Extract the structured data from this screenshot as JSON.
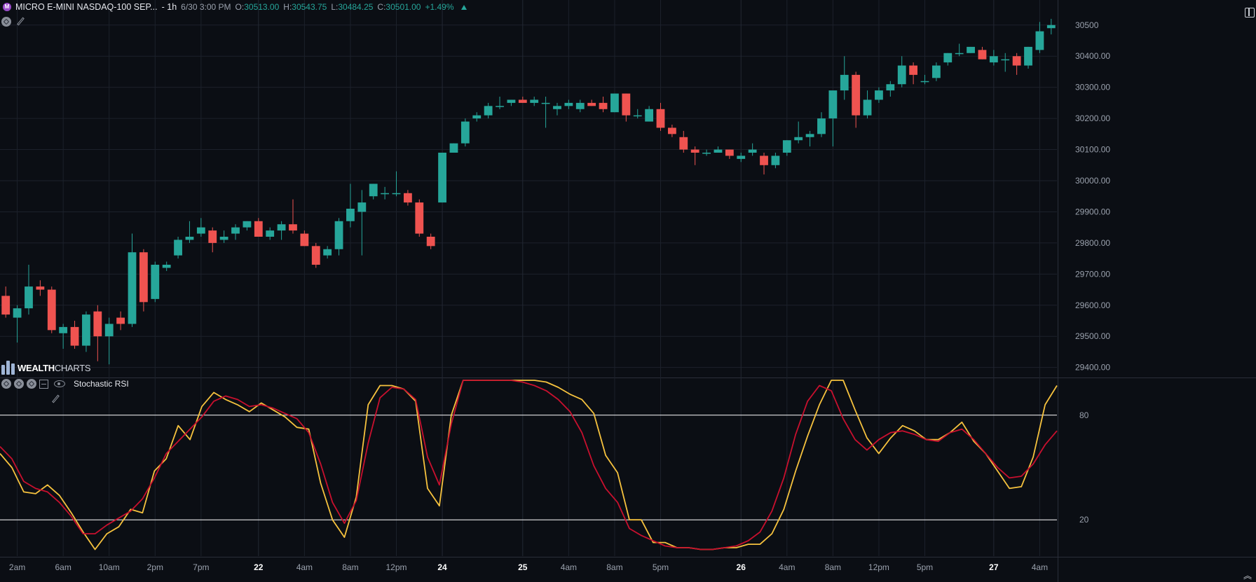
{
  "header": {
    "symbol": "MICRO E-MINI NASDAQ-100 SEP...",
    "interval": "- 1h",
    "datetime": "6/30 3:00 PM",
    "o_label": "O:",
    "o_value": "30513.00",
    "h_label": "H:",
    "h_value": "30543.75",
    "l_label": "L:",
    "l_value": "30484.25",
    "c_label": "C:",
    "c_value": "30501.00",
    "change": "+1.49%"
  },
  "brand": {
    "part1": "WEALTH",
    "part2": "CHARTS"
  },
  "indicator": {
    "name": "Stochastic RSI"
  },
  "colors": {
    "background": "#0b0e14",
    "up": "#26a69a",
    "down": "#ef5350",
    "k_line": "#f6c23e",
    "d_line": "#c8102e",
    "grid": "#1c212b",
    "level_line": "#ffffff"
  },
  "icons": [
    "symbol-icon",
    "settings-icon",
    "pencil-icon",
    "chevron-down-icon",
    "chevron-up-icon",
    "minimize-icon",
    "eye-icon",
    "layout-icon",
    "double-chevron-up-icon"
  ],
  "chart_data": [
    {
      "type": "candlestick",
      "title": "",
      "ylim": [
        29370,
        30540
      ],
      "y_ticks": [
        29400,
        29500,
        29600,
        29700,
        29800,
        29900,
        30000,
        30100,
        30200,
        30300,
        30400,
        30500
      ],
      "y_tick_labels": [
        "29400.00",
        "29500.00",
        "29600.00",
        "29700.00",
        "29800.00",
        "29900.00",
        "30000.00",
        "30100.00",
        "30200.00",
        "30300.00",
        "30400.00",
        "30500"
      ],
      "candles": [
        [
          29630,
          29660,
          29560,
          29570
        ],
        [
          29560,
          29600,
          29480,
          29590
        ],
        [
          29590,
          29730,
          29570,
          29660
        ],
        [
          29660,
          29680,
          29630,
          29650
        ],
        [
          29650,
          29660,
          29510,
          29520
        ],
        [
          29510,
          29540,
          29460,
          29530
        ],
        [
          29530,
          29550,
          29460,
          29470
        ],
        [
          29470,
          29580,
          29450,
          29570
        ],
        [
          29580,
          29600,
          29420,
          29500
        ],
        [
          29500,
          29560,
          29410,
          29540
        ],
        [
          29560,
          29580,
          29520,
          29540
        ],
        [
          29540,
          29830,
          29530,
          29770
        ],
        [
          29770,
          29780,
          29580,
          29610
        ],
        [
          29620,
          29740,
          29610,
          29730
        ],
        [
          29720,
          29740,
          29710,
          29730
        ],
        [
          29760,
          29820,
          29750,
          29810
        ],
        [
          29810,
          29870,
          29800,
          29820
        ],
        [
          29830,
          29880,
          29820,
          29850
        ],
        [
          29840,
          29850,
          29770,
          29800
        ],
        [
          29810,
          29840,
          29800,
          29820
        ],
        [
          29830,
          29860,
          29810,
          29850
        ],
        [
          29850,
          29870,
          29840,
          29870
        ],
        [
          29870,
          29880,
          29820,
          29820
        ],
        [
          29820,
          29850,
          29810,
          29840
        ],
        [
          29840,
          29870,
          29810,
          29860
        ],
        [
          29860,
          29940,
          29830,
          29840
        ],
        [
          29830,
          29840,
          29790,
          29790
        ],
        [
          29790,
          29800,
          29720,
          29730
        ],
        [
          29760,
          29790,
          29750,
          29780
        ],
        [
          29780,
          29880,
          29760,
          29870
        ],
        [
          29870,
          29990,
          29850,
          29910
        ],
        [
          29900,
          29970,
          29760,
          29930
        ],
        [
          29950,
          29990,
          29940,
          29990
        ],
        [
          29960,
          29980,
          29940,
          29960
        ],
        [
          29960,
          30030,
          29950,
          29960
        ],
        [
          29960,
          29970,
          29920,
          29930
        ],
        [
          29930,
          29940,
          29820,
          29830
        ],
        [
          29820,
          29830,
          29780,
          29790
        ],
        [
          29930,
          30090,
          29930,
          30090
        ],
        [
          30090,
          30120,
          30090,
          30120
        ],
        [
          30120,
          30200,
          30110,
          30190
        ],
        [
          30200,
          30220,
          30190,
          30210
        ],
        [
          30210,
          30250,
          30200,
          30240
        ],
        [
          30240,
          30270,
          30230,
          30240
        ],
        [
          30250,
          30260,
          30240,
          30260
        ],
        [
          30260,
          30270,
          30250,
          30250
        ],
        [
          30250,
          30270,
          30240,
          30260
        ],
        [
          30250,
          30270,
          30170,
          30250
        ],
        [
          30230,
          30250,
          30210,
          30240
        ],
        [
          30240,
          30260,
          30230,
          30250
        ],
        [
          30230,
          30260,
          30220,
          30250
        ],
        [
          30250,
          30260,
          30240,
          30240
        ],
        [
          30250,
          30270,
          30220,
          30230
        ],
        [
          30220,
          30280,
          30220,
          30280
        ],
        [
          30280,
          30280,
          30190,
          30210
        ],
        [
          30210,
          30230,
          30200,
          30210
        ],
        [
          30190,
          30240,
          30190,
          30230
        ],
        [
          30230,
          30250,
          30160,
          30170
        ],
        [
          30170,
          30180,
          30140,
          30150
        ],
        [
          30140,
          30160,
          30090,
          30100
        ],
        [
          30100,
          30110,
          30050,
          30090
        ],
        [
          30090,
          30100,
          30080,
          30090
        ],
        [
          30090,
          30110,
          30090,
          30100
        ],
        [
          30100,
          30100,
          30070,
          30080
        ],
        [
          30070,
          30090,
          30060,
          30080
        ],
        [
          30090,
          30120,
          30080,
          30100
        ],
        [
          30080,
          30090,
          30020,
          30050
        ],
        [
          30050,
          30090,
          30040,
          30080
        ],
        [
          30090,
          30130,
          30080,
          30130
        ],
        [
          30130,
          30190,
          30120,
          30140
        ],
        [
          30140,
          30160,
          30110,
          30150
        ],
        [
          30150,
          30220,
          30140,
          30200
        ],
        [
          30200,
          30280,
          30110,
          30290
        ],
        [
          30290,
          30400,
          30260,
          30340
        ],
        [
          30340,
          30350,
          30170,
          30210
        ],
        [
          30210,
          30290,
          30200,
          30260
        ],
        [
          30260,
          30300,
          30250,
          30290
        ],
        [
          30290,
          30320,
          30270,
          30310
        ],
        [
          30310,
          30400,
          30300,
          30370
        ],
        [
          30370,
          30380,
          30310,
          30340
        ],
        [
          30320,
          30340,
          30310,
          30320
        ],
        [
          30330,
          30380,
          30320,
          30370
        ],
        [
          30380,
          30410,
          30370,
          30410
        ],
        [
          30410,
          30440,
          30400,
          30410
        ],
        [
          30410,
          30430,
          30410,
          30430
        ],
        [
          30420,
          30430,
          30390,
          30390
        ],
        [
          30380,
          30420,
          30370,
          30400
        ],
        [
          30390,
          30410,
          30350,
          30390
        ],
        [
          30400,
          30410,
          30340,
          30370
        ],
        [
          30370,
          30430,
          30360,
          30430
        ],
        [
          30420,
          30510,
          30410,
          30480
        ],
        [
          30490,
          30520,
          30470,
          30500
        ]
      ],
      "x_tick_labels": [
        "2am",
        "6am",
        "10am",
        "2pm",
        "7pm",
        "22",
        "4am",
        "8am",
        "12pm",
        "24",
        "25",
        "4am",
        "8am",
        "5pm",
        "26",
        "4am",
        "8am",
        "12pm",
        "5pm",
        "27",
        "4am"
      ],
      "x_tick_bold": [
        false,
        false,
        false,
        false,
        false,
        true,
        false,
        false,
        false,
        true,
        true,
        false,
        false,
        false,
        true,
        false,
        false,
        false,
        false,
        true,
        false
      ]
    },
    {
      "type": "line",
      "title": "Stochastic RSI",
      "ylim": [
        0,
        100
      ],
      "levels": [
        80,
        20
      ],
      "level_labels": [
        "80",
        "20"
      ],
      "series": [
        {
          "name": "",
          "values": [
            58,
            50,
            36,
            35,
            40,
            34,
            24,
            13,
            3,
            12,
            16,
            26,
            24,
            48,
            55,
            74,
            66,
            85,
            93,
            89,
            86,
            82,
            87,
            83,
            79,
            73,
            72,
            41,
            20,
            10,
            33,
            86,
            97,
            97,
            95,
            88,
            38,
            28,
            80,
            100,
            100,
            100,
            100,
            100,
            100,
            100,
            99,
            96,
            92,
            89,
            81,
            57,
            47,
            20,
            20,
            7,
            7,
            4,
            4,
            3,
            3,
            4,
            4,
            6,
            6,
            12,
            26,
            48,
            68,
            86,
            100,
            100,
            83,
            67,
            58,
            67,
            74,
            71,
            66,
            66,
            70,
            76,
            65,
            58,
            48,
            38,
            39,
            56,
            86,
            97
          ]
        },
        {
          "name": "",
          "values": [
            62,
            55,
            42,
            38,
            36,
            30,
            22,
            12,
            12,
            17,
            21,
            25,
            32,
            44,
            58,
            65,
            72,
            79,
            88,
            91,
            89,
            85,
            86,
            84,
            81,
            78,
            70,
            52,
            30,
            18,
            31,
            64,
            90,
            96,
            95,
            89,
            56,
            40,
            75,
            100,
            100,
            100,
            100,
            100,
            99,
            97,
            94,
            89,
            82,
            70,
            51,
            38,
            30,
            15,
            11,
            8,
            5,
            4,
            4,
            3,
            3,
            4,
            5,
            8,
            13,
            25,
            44,
            69,
            88,
            97,
            94,
            78,
            66,
            60,
            66,
            70,
            71,
            69,
            66,
            65,
            70,
            72,
            66,
            58,
            50,
            44,
            45,
            52,
            63,
            71
          ]
        }
      ]
    }
  ]
}
